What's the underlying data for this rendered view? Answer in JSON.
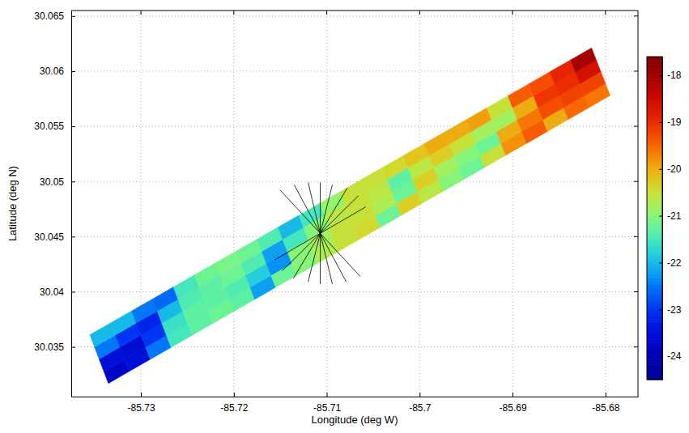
{
  "chart_data": {
    "type": "heatmap",
    "x_label": "Longitude (deg W)",
    "y_label": "Latitude (deg N)",
    "xlim": [
      -85.7375,
      -85.6765
    ],
    "ylim": [
      30.0305,
      30.0655
    ],
    "xticks": [
      -85.73,
      -85.72,
      -85.71,
      -85.7,
      -85.69,
      -85.68
    ],
    "yticks": [
      30.035,
      30.04,
      30.045,
      30.05,
      30.055,
      30.06,
      30.065
    ],
    "grid": true,
    "swath": {
      "corners": {
        "lon": [
          -85.7335,
          -85.6795,
          -85.6815,
          -85.7355
        ],
        "lat": [
          30.0317,
          30.0578,
          30.0621,
          30.0361
        ]
      },
      "values": [
        [
          -23.8,
          -23.5,
          -22.5,
          -22.0
        ],
        [
          -23.5,
          -23.6,
          -23.0,
          -22.0
        ],
        [
          -22.5,
          -23.0,
          -23.2,
          -22.5
        ],
        [
          -21.5,
          -21.6,
          -22.0,
          -22.6
        ],
        [
          -21.3,
          -21.3,
          -21.4,
          -21.5
        ],
        [
          -21.2,
          -21.3,
          -21.3,
          -21.2
        ],
        [
          -21.3,
          -21.4,
          -21.2,
          -21.1
        ],
        [
          -22.2,
          -21.8,
          -21.4,
          -21.2
        ],
        [
          -21.2,
          -22.3,
          -22.2,
          -21.4
        ],
        [
          -21.0,
          -21.0,
          -21.5,
          -22.0
        ],
        [
          -20.7,
          -20.8,
          -21.0,
          -21.5
        ],
        [
          -20.5,
          -20.5,
          -20.6,
          -20.9
        ],
        [
          -20.4,
          -20.5,
          -20.5,
          -20.5
        ],
        [
          -21.2,
          -20.7,
          -20.6,
          -20.5
        ],
        [
          -20.3,
          -21.2,
          -21.3,
          -20.4
        ],
        [
          -20.6,
          -20.3,
          -20.6,
          -20.2
        ],
        [
          -21.0,
          -20.8,
          -20.3,
          -20.0
        ],
        [
          -21.2,
          -21.0,
          -20.5,
          -20.0
        ],
        [
          -20.5,
          -21.2,
          -20.8,
          -19.9
        ],
        [
          -19.8,
          -20.0,
          -20.8,
          -20.5
        ],
        [
          -19.4,
          -19.6,
          -20.0,
          -19.4
        ],
        [
          -20.0,
          -19.3,
          -19.1,
          -19.3
        ],
        [
          -19.5,
          -19.2,
          -19.0,
          -18.9
        ],
        [
          -19.6,
          -19.2,
          -18.6,
          -18.0
        ]
      ]
    },
    "lines": [
      {
        "lon": [
          -85.715,
          -85.7064
        ],
        "lat": [
          30.0492,
          30.0414
        ]
      },
      {
        "lon": [
          -85.7135,
          -85.7079
        ],
        "lat": [
          30.0497,
          30.0409
        ]
      },
      {
        "lon": [
          -85.712,
          -85.7094
        ],
        "lat": [
          30.0499,
          30.0407
        ]
      },
      {
        "lon": [
          -85.7107,
          -85.7107
        ],
        "lat": [
          30.0499,
          30.0407
        ]
      },
      {
        "lon": [
          -85.7094,
          -85.712
        ],
        "lat": [
          30.0497,
          30.0409
        ]
      },
      {
        "lon": [
          -85.7078,
          -85.7136
        ],
        "lat": [
          30.0494,
          30.0412
        ]
      },
      {
        "lon": [
          -85.7066,
          -85.7148
        ],
        "lat": [
          30.0487,
          30.0419
        ]
      },
      {
        "lon": [
          -85.7058,
          -85.7156
        ],
        "lat": [
          30.0477,
          30.0429
        ]
      }
    ],
    "colorbar": {
      "range": [
        -24.5,
        -17.6
      ],
      "ticks": [
        -24,
        -23,
        -22,
        -21,
        -20,
        -19,
        -18
      ]
    }
  }
}
